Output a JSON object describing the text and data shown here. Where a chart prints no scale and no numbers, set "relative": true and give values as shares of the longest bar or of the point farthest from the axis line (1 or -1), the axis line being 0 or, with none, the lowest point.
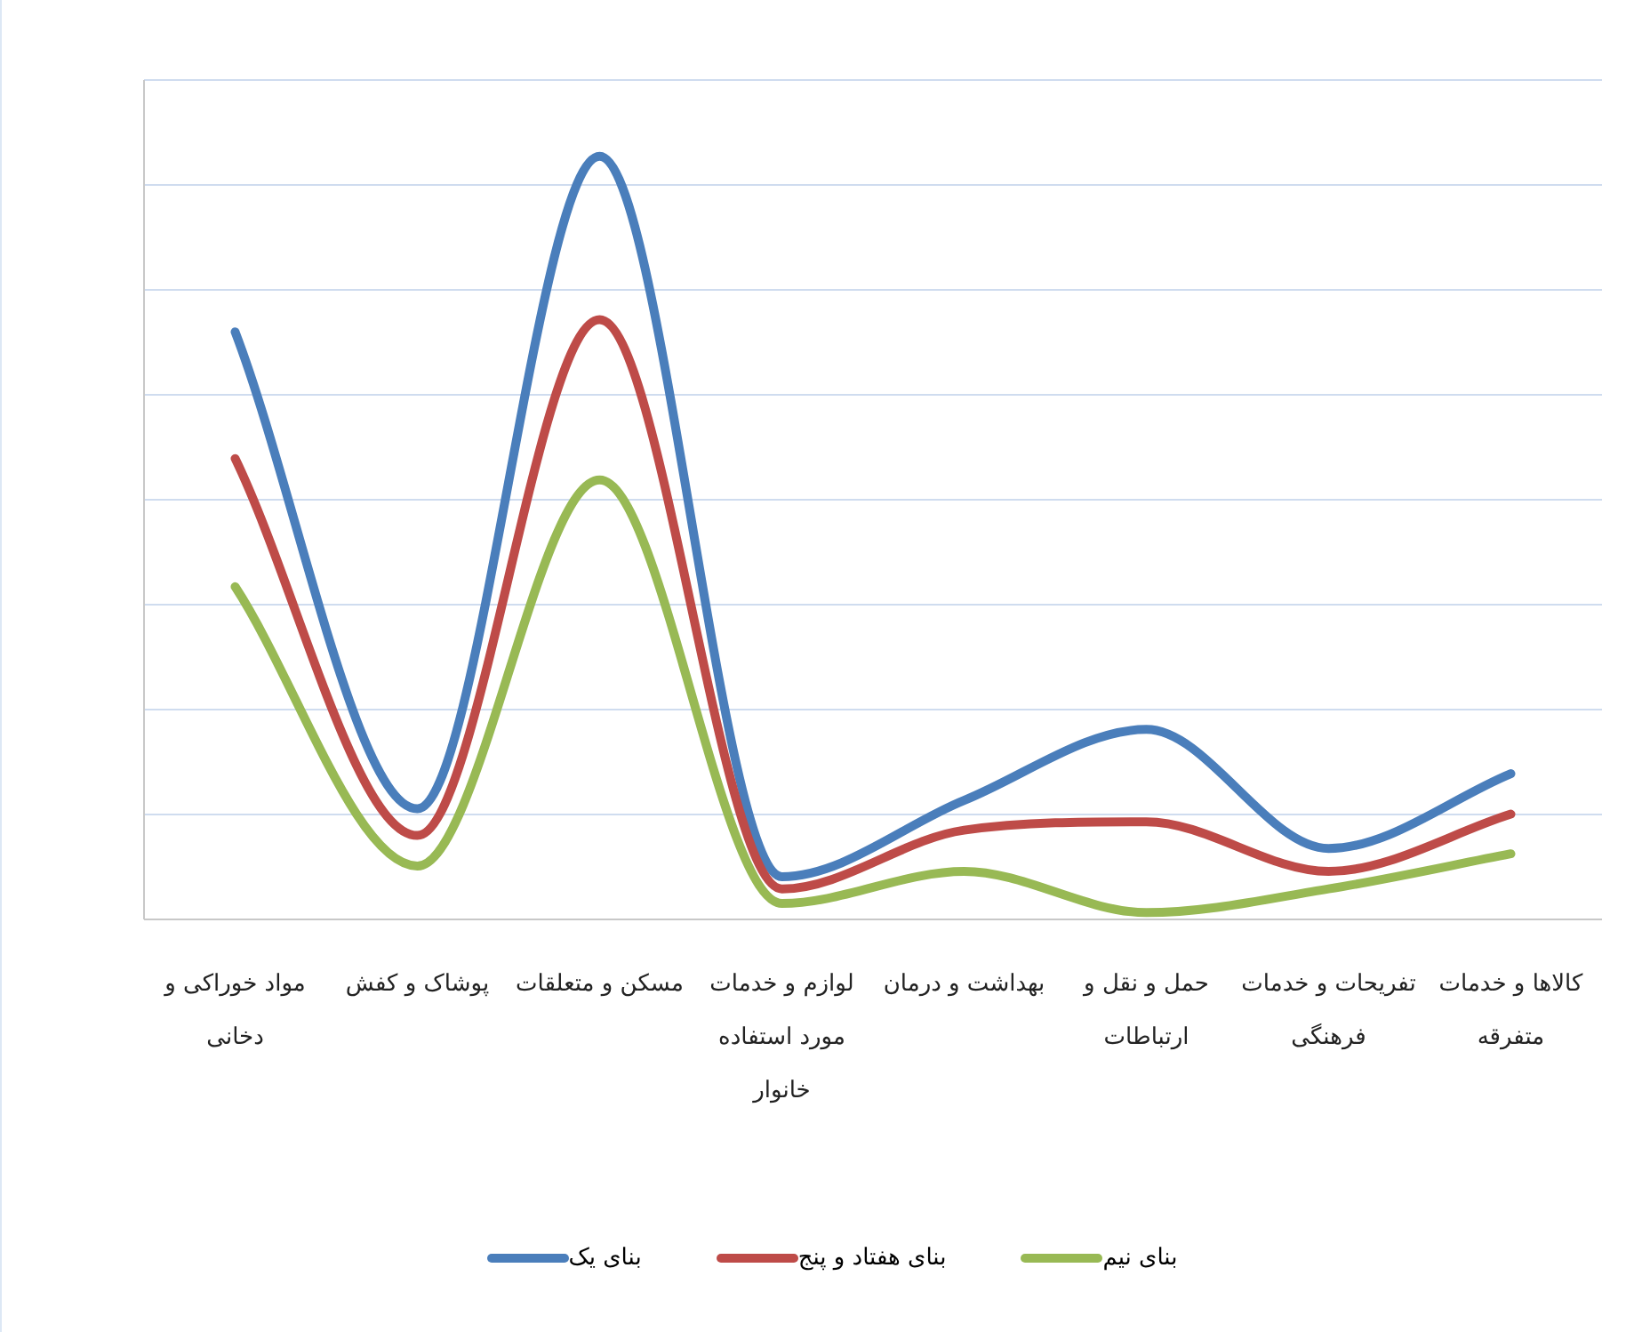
{
  "chart_data": {
    "type": "line",
    "relative": true,
    "grid": "y",
    "legend": "bottom",
    "categories": [
      "مواد خوراکی و دخانی",
      "پوشاک و کفش",
      "مسکن و متعلقات",
      "لوازم و خدمات مورد استفاده خانوار",
      "بهداشت و درمان",
      "حمل و نقل و ارتباطات",
      "تفریحات و خدمات فرهنگی",
      "کالاها و خدمات متفرقه"
    ],
    "series": [
      {
        "name": "بنای یک",
        "color": "#4a7ebb",
        "values": [
          0.77,
          0.145,
          1,
          0.056,
          0.156,
          0.249,
          0.093,
          0.191
        ]
      },
      {
        "name": "بنای هفتاد و پنج",
        "color": "#be4b48",
        "values": [
          0.604,
          0.11,
          0.786,
          0.04,
          0.117,
          0.128,
          0.063,
          0.138
        ]
      },
      {
        "name": "بنای نیم",
        "color": "#98b954",
        "values": [
          0.436,
          0.07,
          0.576,
          0.021,
          0.063,
          0.009,
          0.04,
          0.086
        ]
      }
    ]
  }
}
